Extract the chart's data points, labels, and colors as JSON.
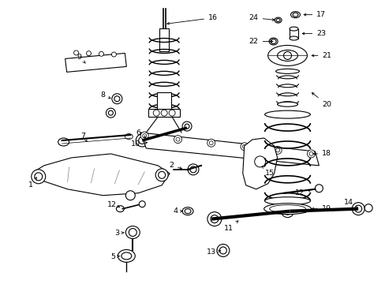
{
  "bg": "#ffffff",
  "fw": 4.89,
  "fh": 3.6,
  "dpi": 100,
  "lc": "black",
  "lw": 0.8
}
